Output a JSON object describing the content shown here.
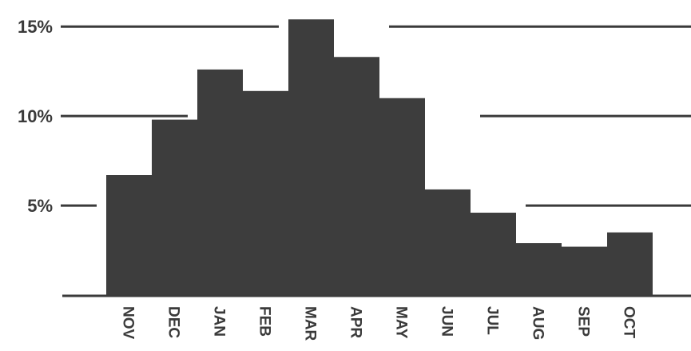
{
  "chart_data": {
    "type": "bar",
    "title": "",
    "xlabel": "",
    "ylabel": "",
    "categories": [
      "NOV",
      "DEC",
      "JAN",
      "FEB",
      "MAR",
      "APR",
      "MAY",
      "JUN",
      "JUL",
      "AUG",
      "SEP",
      "OCT"
    ],
    "values": [
      6.7,
      9.8,
      12.6,
      11.4,
      15.4,
      13.3,
      11.0,
      5.9,
      4.6,
      2.9,
      2.7,
      3.5
    ],
    "ylim": [
      0,
      15.5
    ],
    "y_ticks": [
      {
        "value": 5,
        "label": "5%"
      },
      {
        "value": 10,
        "label": "10%"
      },
      {
        "value": 15,
        "label": "15%"
      }
    ],
    "grid": true,
    "bar_color": "#3d3d3d",
    "line_color": "#3a3a3a",
    "category_label_orientation": "rotated-90-clockwise"
  }
}
